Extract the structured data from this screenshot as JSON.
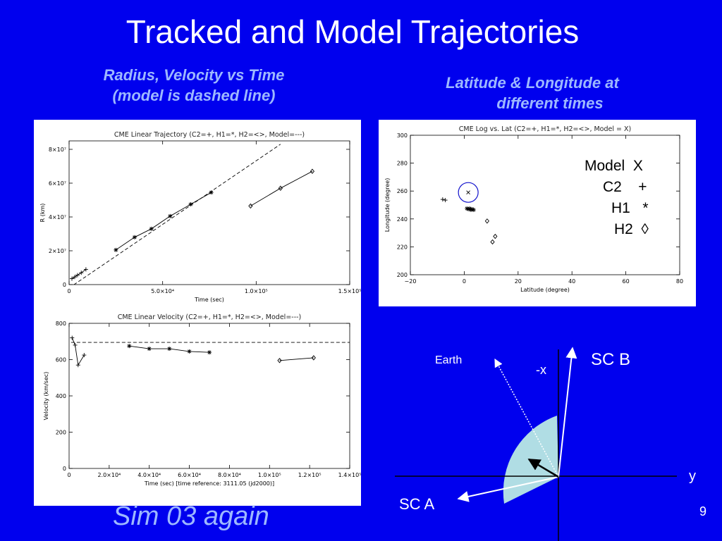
{
  "slide": {
    "title": "Tracked and Model Trajectories",
    "subtitle_left": [
      "Radius, Velocity vs Time",
      "(model is dashed line)"
    ],
    "subtitle_right": [
      "Latitude & Longitude at",
      "different times"
    ],
    "footer": "Sim 03 again",
    "page_number": "9"
  },
  "legend_box": {
    "rows": [
      {
        "name": "Model",
        "symbol": "X"
      },
      {
        "name": "C2",
        "symbol": "+"
      },
      {
        "name": "H1",
        "symbol": "*"
      },
      {
        "name": "H2",
        "symbol": "◊"
      }
    ]
  },
  "geometry_diagram": {
    "labels": {
      "earth": "Earth",
      "neg_x": "-x",
      "sc_b": "SC B",
      "sc_a": "SC A",
      "y": "y"
    },
    "colors": {
      "sector_fill": "#b0dde4",
      "lines": "#ffffff",
      "arrow": "#000000"
    }
  },
  "chart_data": [
    {
      "type": "scatter",
      "title": "CME Linear Trajectory (C2=+, H1=*, H2=<>, Model=---)",
      "xlabel": "Time (sec)",
      "ylabel": "R (km)",
      "xlim": [
        0,
        150000
      ],
      "ylim": [
        0,
        85000000
      ],
      "xticks": [
        {
          "v": 0,
          "label": "0"
        },
        {
          "v": 50000,
          "label": "5.0×10⁴"
        },
        {
          "v": 100000,
          "label": "1.0×10⁵"
        },
        {
          "v": 150000,
          "label": "1.5×10⁵"
        }
      ],
      "yticks": [
        {
          "v": 0,
          "label": "0"
        },
        {
          "v": 20000000,
          "label": "2×10⁷"
        },
        {
          "v": 40000000,
          "label": "4×10⁷"
        },
        {
          "v": 60000000,
          "label": "6×10⁷"
        },
        {
          "v": 80000000,
          "label": "8×10⁷"
        }
      ],
      "series": [
        {
          "name": "C2",
          "marker": "+",
          "x": [
            1500,
            3000,
            4500,
            6500,
            9000
          ],
          "y": [
            3500000,
            4500000,
            5600000,
            7000000,
            9000000
          ]
        },
        {
          "name": "H1",
          "marker": "*",
          "x": [
            25000,
            35000,
            44000,
            54000,
            65000,
            76000
          ],
          "y": [
            20500000,
            28000000,
            33000000,
            40500000,
            47500000,
            54500000
          ]
        },
        {
          "name": "H2",
          "marker": "◊",
          "x": [
            97000,
            113000,
            130000
          ],
          "y": [
            46500000,
            57000000,
            67000000
          ]
        },
        {
          "name": "Model",
          "style": "dashed",
          "x": [
            0,
            113000
          ],
          "y": [
            -2000000,
            83000000
          ]
        }
      ]
    },
    {
      "type": "scatter",
      "title": "CME Linear Velocity (C2=+, H1=*, H2=<>, Model=---)",
      "xlabel": "Time (sec) [time reference:       3111.05 (jd2000)]",
      "ylabel": "Velocity (km/sec)",
      "xlim": [
        0,
        140000
      ],
      "ylim": [
        0,
        800
      ],
      "xticks": [
        {
          "v": 0,
          "label": "0"
        },
        {
          "v": 20000,
          "label": "2.0×10⁴"
        },
        {
          "v": 40000,
          "label": "4.0×10⁴"
        },
        {
          "v": 60000,
          "label": "6.0×10⁴"
        },
        {
          "v": 80000,
          "label": "8.0×10⁴"
        },
        {
          "v": 100000,
          "label": "1.0×10⁵"
        },
        {
          "v": 120000,
          "label": "1.2×10⁵"
        },
        {
          "v": 140000,
          "label": "1.4×10⁵"
        }
      ],
      "yticks": [
        {
          "v": 0,
          "label": "0"
        },
        {
          "v": 200,
          "label": "200"
        },
        {
          "v": 400,
          "label": "400"
        },
        {
          "v": 600,
          "label": "600"
        },
        {
          "v": 800,
          "label": "800"
        }
      ],
      "series": [
        {
          "name": "C2",
          "marker": "+",
          "x": [
            1500,
            3000,
            4500,
            7500
          ],
          "y": [
            720,
            680,
            570,
            625
          ]
        },
        {
          "name": "H1",
          "marker": "*",
          "x": [
            30000,
            40000,
            50000,
            60000,
            70000
          ],
          "y": [
            675,
            660,
            660,
            645,
            640
          ]
        },
        {
          "name": "H2",
          "marker": "◊",
          "x": [
            105000,
            122000
          ],
          "y": [
            595,
            610
          ]
        },
        {
          "name": "Model",
          "style": "dashed",
          "x": [
            1000,
            140000
          ],
          "y": [
            695,
            695
          ]
        }
      ]
    },
    {
      "type": "scatter",
      "title": "CME Log vs. Lat (C2=+, H1=*, H2=<>,  Model = X)",
      "xlabel": "Latitude (degree)",
      "ylabel": "Longitude (degree)",
      "xlim": [
        -20,
        80
      ],
      "ylim": [
        200,
        300
      ],
      "xticks": [
        {
          "v": -20,
          "label": "−20"
        },
        {
          "v": 0,
          "label": "0"
        },
        {
          "v": 20,
          "label": "20"
        },
        {
          "v": 40,
          "label": "40"
        },
        {
          "v": 60,
          "label": "60"
        },
        {
          "v": 80,
          "label": "80"
        }
      ],
      "yticks": [
        {
          "v": 200,
          "label": "200"
        },
        {
          "v": 220,
          "label": "220"
        },
        {
          "v": 240,
          "label": "240"
        },
        {
          "v": 260,
          "label": "260"
        },
        {
          "v": 280,
          "label": "280"
        },
        {
          "v": 300,
          "label": "300"
        }
      ],
      "series": [
        {
          "name": "Model",
          "marker": "X",
          "x": [
            1.5
          ],
          "y": [
            259
          ],
          "circled": true
        },
        {
          "name": "C2",
          "marker": "+",
          "x": [
            -8,
            -7
          ],
          "y": [
            254,
            253.5
          ]
        },
        {
          "name": "H1",
          "marker": "*",
          "x": [
            1,
            1.5,
            2,
            2.5,
            3,
            3.5
          ],
          "y": [
            247.5,
            247,
            247.5,
            246.5,
            247,
            246.5
          ]
        },
        {
          "name": "H2",
          "marker": "◊",
          "x": [
            8.5,
            11.5,
            10.5
          ],
          "y": [
            238.5,
            227.5,
            223.5
          ]
        }
      ]
    }
  ]
}
